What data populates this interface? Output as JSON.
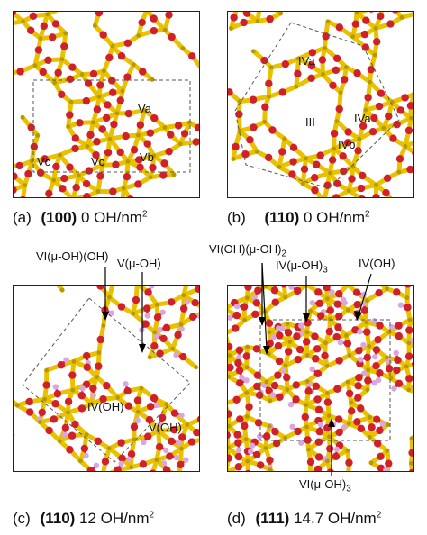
{
  "panels": [
    {
      "letter": "(a)",
      "facet": "(100)",
      "coverage": "0 OH/nm",
      "coverage_exp": "2",
      "sites": [
        "Va",
        "Vc",
        "Vc",
        "Vb"
      ]
    },
    {
      "letter": "(b)",
      "facet": "(110)",
      "coverage": "0 OH/nm",
      "coverage_exp": "2",
      "sites": [
        "IVa",
        "III",
        "IVa",
        "IVb"
      ]
    },
    {
      "letter": "(c)",
      "facet": "(110)",
      "coverage": "12 OH/nm",
      "coverage_exp": "2",
      "sites": [
        "IV(OH)",
        "V(OH)"
      ],
      "callouts": [
        "VI(μ-OH)(OH)",
        "V(μ-OH)"
      ]
    },
    {
      "letter": "(d)",
      "facet": "(111)",
      "coverage": "14.7 OH/nm",
      "coverage_exp": "2",
      "callouts": [
        "VI(OH)(μ-OH)",
        "IV(μ-OH)",
        "IV(OH)",
        "VI(μ-OH)"
      ],
      "callout_subs": [
        "2",
        "3",
        "",
        "3"
      ]
    }
  ],
  "colors": {
    "bond": "#e8c200",
    "bond_dark": "#b89800",
    "oxygen": "#d0202c",
    "hydrogen": "#d9a6e0",
    "frame": "#222222",
    "cell": "#555555"
  }
}
